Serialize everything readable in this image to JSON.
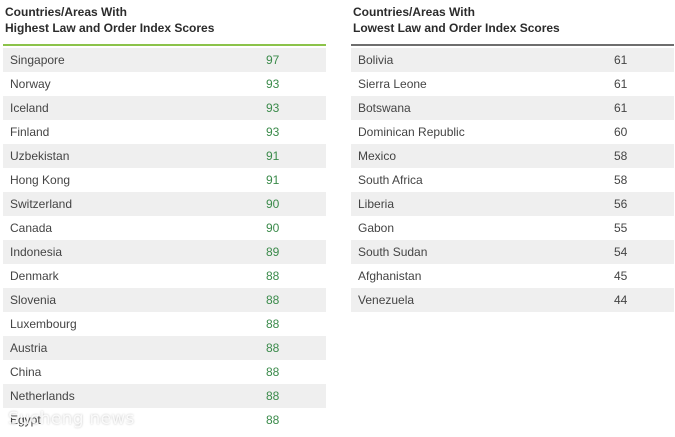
{
  "left_table": {
    "title_line1": "Countries/Areas With",
    "title_line2": "Highest Law and Order Index Scores",
    "accent_color": "#8cc34a",
    "rows": [
      {
        "name": "Singapore",
        "score": "97"
      },
      {
        "name": "Norway",
        "score": "93"
      },
      {
        "name": "Iceland",
        "score": "93"
      },
      {
        "name": "Finland",
        "score": "93"
      },
      {
        "name": "Uzbekistan",
        "score": "91"
      },
      {
        "name": "Hong Kong",
        "score": "91"
      },
      {
        "name": "Switzerland",
        "score": "90"
      },
      {
        "name": "Canada",
        "score": "90"
      },
      {
        "name": "Indonesia",
        "score": "89"
      },
      {
        "name": "Denmark",
        "score": "88"
      },
      {
        "name": "Slovenia",
        "score": "88"
      },
      {
        "name": "Luxembourg",
        "score": "88"
      },
      {
        "name": "Austria",
        "score": "88"
      },
      {
        "name": "China",
        "score": "88"
      },
      {
        "name": "Netherlands",
        "score": "88"
      },
      {
        "name": "Egypt",
        "score": "88"
      }
    ]
  },
  "right_table": {
    "title_line1": "Countries/Areas With",
    "title_line2": "Lowest Law and Order Index Scores",
    "accent_color": "#6e6e6e",
    "rows": [
      {
        "name": "Bolivia",
        "score": "61"
      },
      {
        "name": "Sierra Leone",
        "score": "61"
      },
      {
        "name": "Botswana",
        "score": "61"
      },
      {
        "name": "Dominican Republic",
        "score": "60"
      },
      {
        "name": "Mexico",
        "score": "58"
      },
      {
        "name": "South Africa",
        "score": "58"
      },
      {
        "name": "Liberia",
        "score": "56"
      },
      {
        "name": "Gabon",
        "score": "55"
      },
      {
        "name": "South Sudan",
        "score": "54"
      },
      {
        "name": "Afghanistan",
        "score": "45"
      },
      {
        "name": "Venezuela",
        "score": "44"
      }
    ]
  },
  "watermark": "Sucheng news"
}
